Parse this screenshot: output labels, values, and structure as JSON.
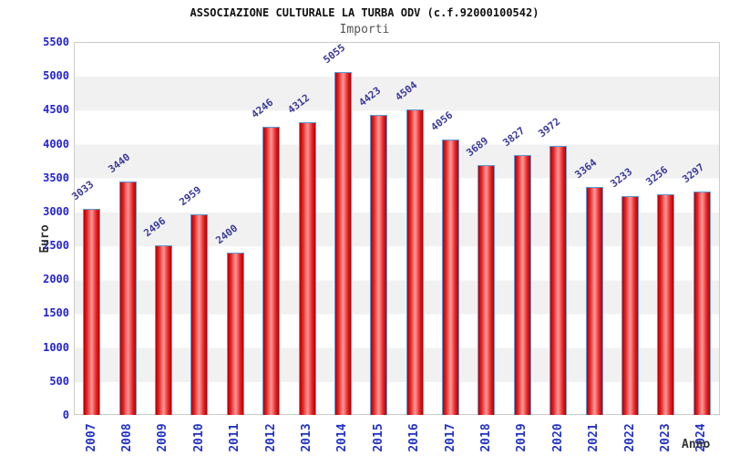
{
  "chart_data": {
    "type": "bar",
    "title": "ASSOCIAZIONE CULTURALE LA TURBA ODV (c.f.92000100542)",
    "subtitle": "Importi",
    "xlabel": "Anno",
    "ylabel": "Euro",
    "categories": [
      "2007",
      "2008",
      "2009",
      "2010",
      "2011",
      "2012",
      "2013",
      "2014",
      "2015",
      "2016",
      "2017",
      "2018",
      "2019",
      "2020",
      "2021",
      "2022",
      "2023",
      "2024"
    ],
    "values": [
      3033,
      3440,
      2496,
      2959,
      2400,
      4246,
      4312,
      5055,
      4423,
      4504,
      4056,
      3689,
      3827,
      3972,
      3364,
      3233,
      3256,
      3297
    ],
    "ylim": [
      0,
      5500
    ],
    "ytick_step": 500,
    "yticks": [
      5500,
      5000,
      4500,
      4000,
      3500,
      3000,
      2500,
      2000,
      1500,
      1000,
      500,
      0
    ],
    "grid": "horizontal-alternating-bands",
    "legend": null,
    "colors": {
      "bar_edge": "#b50000",
      "bar_center": "#ff9a9a",
      "bar_border": "#5b9bd5",
      "tick_label": "#2323d6",
      "value_label": "#3a3a99",
      "title": "#111111",
      "subtitle": "#555555",
      "axis_label": "#333333",
      "band": "#f1f1f1",
      "plot_border": "#cccccc",
      "background": "#ffffff"
    }
  }
}
